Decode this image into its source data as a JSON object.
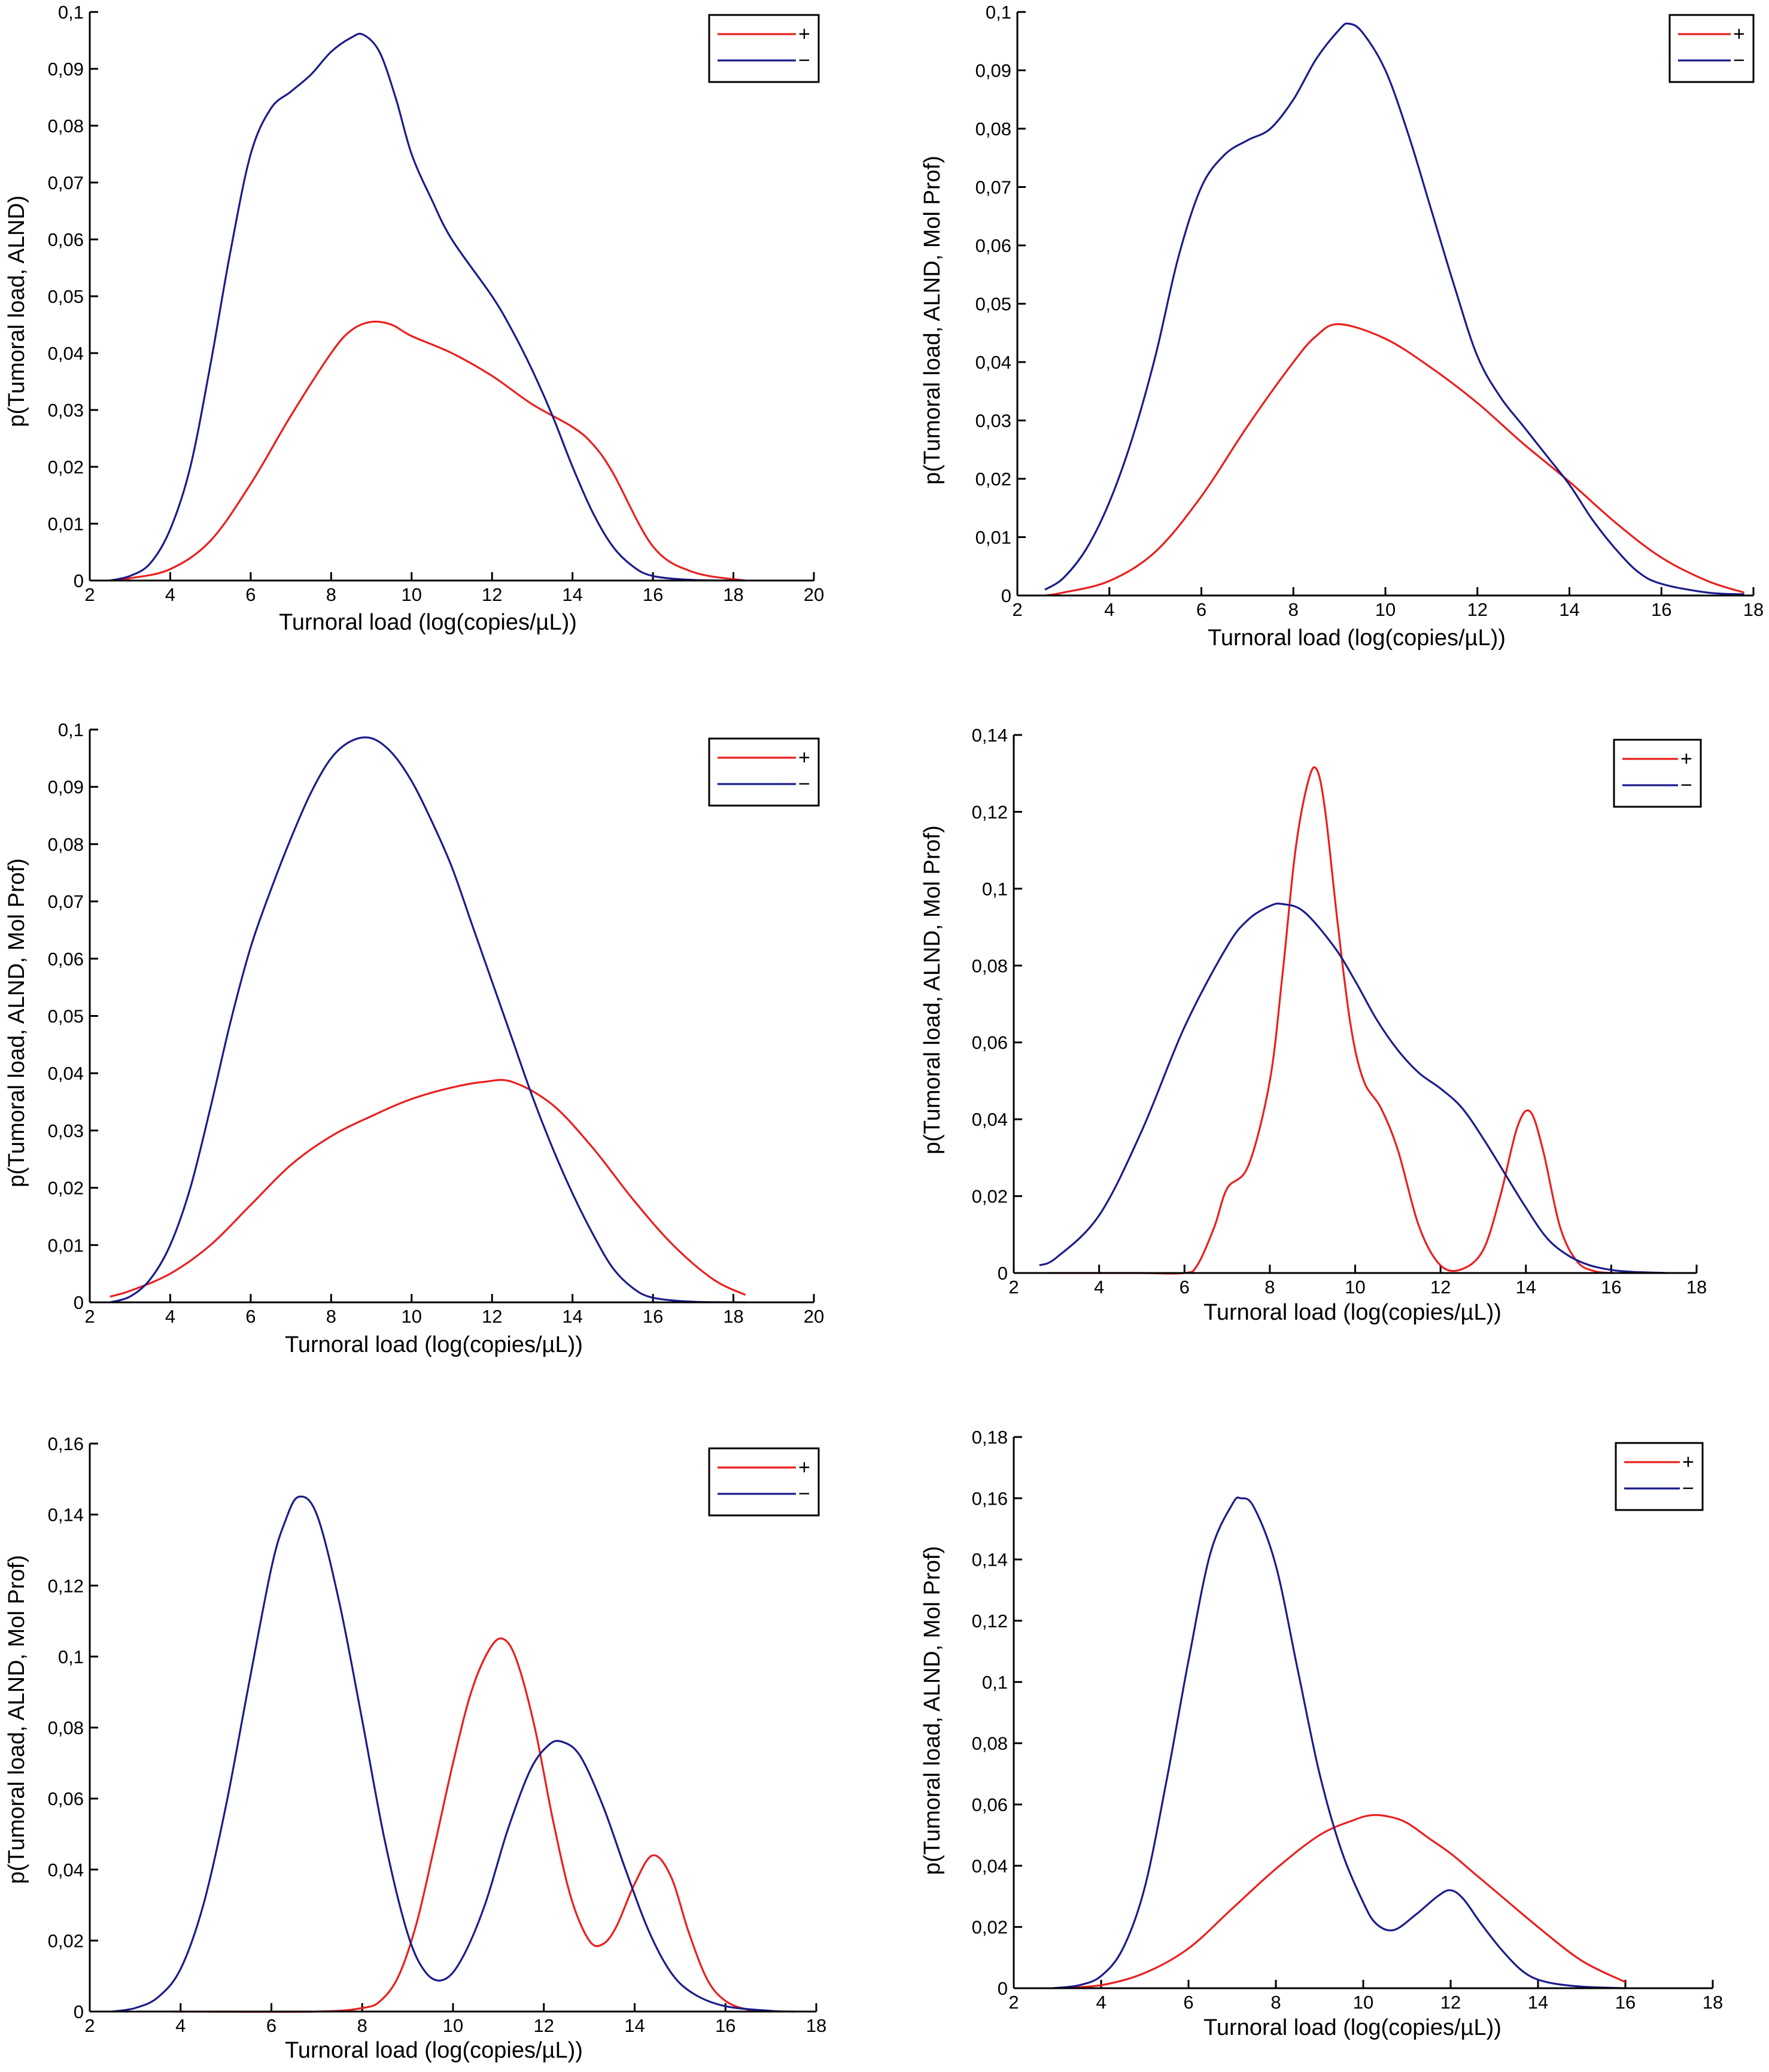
{
  "colors": {
    "pos": "#e8201e",
    "neg": "#1b1c8a",
    "axis": "#000000"
  },
  "chart_data": [
    {
      "type": "line",
      "xlabel": "Turnoral load (log(copies/µL))",
      "ylabel": "p(Tumoral load, ALND)",
      "xlim": [
        2,
        20
      ],
      "ylim": [
        0,
        0.1
      ],
      "xticks": [
        2,
        4,
        6,
        8,
        10,
        12,
        14,
        16,
        18,
        20
      ],
      "xtick_labels": [
        "2",
        "4",
        "6",
        "8",
        "10",
        "12",
        "14",
        "16",
        "18",
        "20"
      ],
      "yticks": [
        0,
        0.01,
        0.02,
        0.03,
        0.04,
        0.05,
        0.06,
        0.07,
        0.08,
        0.09,
        0.1
      ],
      "ytick_labels": [
        "0",
        "0,01",
        "0,02",
        "0,03",
        "0,04",
        "0,05",
        "0,06",
        "0,07",
        "0,08",
        "0,09",
        "0,1"
      ],
      "legend": "top-right",
      "series": [
        {
          "name": "+",
          "color": "#e8201e",
          "x": [
            2.5,
            3,
            4,
            5,
            6,
            7,
            8,
            8.5,
            9,
            9.5,
            10,
            11,
            12,
            13,
            14,
            14.5,
            15,
            16,
            17,
            18.3
          ],
          "y": [
            0,
            0.0004,
            0.002,
            0.007,
            0.017,
            0.029,
            0.04,
            0.044,
            0.0455,
            0.045,
            0.043,
            0.04,
            0.036,
            0.031,
            0.027,
            0.024,
            0.019,
            0.006,
            0.0015,
            0
          ]
        },
        {
          "name": "−",
          "color": "#1b1c8a",
          "x": [
            2.5,
            3,
            3.5,
            4,
            4.5,
            5,
            5.5,
            6,
            6.5,
            7,
            7.5,
            8,
            8.5,
            8.8,
            9.2,
            9.6,
            10,
            10.5,
            11,
            12,
            12.5,
            13,
            13.5,
            14,
            14.5,
            15,
            15.5,
            16,
            17,
            18.3
          ],
          "y": [
            0,
            0.0008,
            0.003,
            0.009,
            0.02,
            0.038,
            0.058,
            0.075,
            0.083,
            0.086,
            0.089,
            0.093,
            0.0955,
            0.096,
            0.093,
            0.085,
            0.075,
            0.067,
            0.06,
            0.05,
            0.044,
            0.037,
            0.029,
            0.02,
            0.012,
            0.006,
            0.0025,
            0.0008,
            0.0001,
            0
          ]
        }
      ]
    },
    {
      "type": "line",
      "xlabel": "Turnoral load (log(copies/µL))",
      "ylabel": "p(Tumoral load, ALND, Mol Prof)",
      "xlim": [
        2,
        18
      ],
      "ylim": [
        0,
        0.1
      ],
      "xticks": [
        2,
        4,
        6,
        8,
        10,
        12,
        14,
        16,
        18
      ],
      "xtick_labels": [
        "2",
        "4",
        "6",
        "8",
        "10",
        "12",
        "14",
        "16",
        "18"
      ],
      "yticks": [
        0,
        0.01,
        0.02,
        0.03,
        0.04,
        0.05,
        0.06,
        0.07,
        0.08,
        0.09,
        0.1
      ],
      "ytick_labels": [
        "0",
        "0,01",
        "0,02",
        "0,03",
        "0,04",
        "0,05",
        "0,06",
        "0,07",
        "0,08",
        "0,09",
        "0,1"
      ],
      "legend": "top-right",
      "series": [
        {
          "name": "+",
          "color": "#e8201e",
          "x": [
            2.6,
            3,
            4,
            5,
            6,
            7,
            8,
            8.5,
            9,
            10,
            11,
            12,
            13,
            14,
            15,
            16,
            17,
            17.8
          ],
          "y": [
            0,
            0.0005,
            0.0025,
            0.0075,
            0.017,
            0.029,
            0.04,
            0.0445,
            0.0465,
            0.044,
            0.039,
            0.033,
            0.026,
            0.0195,
            0.0125,
            0.0065,
            0.0025,
            0.0005
          ]
        },
        {
          "name": "−",
          "color": "#1b1c8a",
          "x": [
            2.6,
            3,
            3.5,
            4,
            4.5,
            5,
            5.5,
            6,
            6.5,
            7,
            7.5,
            8,
            8.5,
            9,
            9.2,
            9.5,
            10,
            10.5,
            11,
            11.5,
            12,
            12.5,
            13,
            13.5,
            14,
            14.5,
            15,
            15.5,
            16,
            17,
            17.8
          ],
          "y": [
            0.001,
            0.003,
            0.008,
            0.016,
            0.027,
            0.041,
            0.058,
            0.07,
            0.0755,
            0.078,
            0.08,
            0.085,
            0.092,
            0.097,
            0.098,
            0.0965,
            0.09,
            0.079,
            0.066,
            0.053,
            0.041,
            0.034,
            0.029,
            0.024,
            0.019,
            0.013,
            0.008,
            0.004,
            0.002,
            0.0005,
            0.0002
          ]
        }
      ]
    },
    {
      "type": "line",
      "xlabel": "Turnoral load (log(copies/µL))",
      "ylabel": "p(Tumoral load, ALND, Mol Prof)",
      "xlim": [
        2,
        20
      ],
      "ylim": [
        0,
        0.1
      ],
      "xticks": [
        2,
        4,
        6,
        8,
        10,
        12,
        14,
        16,
        18,
        20
      ],
      "xtick_labels": [
        "2",
        "4",
        "6",
        "8",
        "10",
        "12",
        "14",
        "16",
        "18",
        "20"
      ],
      "yticks": [
        0,
        0.01,
        0.02,
        0.03,
        0.04,
        0.05,
        0.06,
        0.07,
        0.08,
        0.09,
        0.1
      ],
      "ytick_labels": [
        "0",
        "0,01",
        "0,02",
        "0,03",
        "0,04",
        "0,05",
        "0,06",
        "0,07",
        "0,08",
        "0,09",
        "0,1"
      ],
      "legend": "top-right",
      "series": [
        {
          "name": "+",
          "color": "#e8201e",
          "x": [
            2.5,
            3,
            4,
            5,
            6,
            7,
            8,
            9,
            10,
            11,
            11.8,
            12.5,
            13.5,
            14.5,
            15.5,
            16.5,
            17.5,
            18.3
          ],
          "y": [
            0.001,
            0.002,
            0.005,
            0.01,
            0.017,
            0.024,
            0.029,
            0.0325,
            0.0355,
            0.0375,
            0.0385,
            0.0385,
            0.0345,
            0.027,
            0.018,
            0.01,
            0.004,
            0.0013
          ]
        },
        {
          "name": "−",
          "color": "#1b1c8a",
          "x": [
            2.5,
            3,
            3.5,
            4,
            4.5,
            5,
            5.5,
            6,
            6.5,
            7,
            7.5,
            8,
            8.5,
            9,
            9.5,
            10,
            10.5,
            11,
            11.5,
            12,
            12.5,
            13,
            13.5,
            14,
            14.5,
            15,
            15.5,
            16,
            17,
            18.3
          ],
          "y": [
            0,
            0.001,
            0.004,
            0.01,
            0.02,
            0.034,
            0.049,
            0.062,
            0.072,
            0.081,
            0.089,
            0.095,
            0.098,
            0.0985,
            0.096,
            0.091,
            0.084,
            0.076,
            0.066,
            0.056,
            0.046,
            0.036,
            0.027,
            0.019,
            0.012,
            0.006,
            0.0025,
            0.0008,
            0.0001,
            0
          ]
        }
      ]
    },
    {
      "type": "line",
      "xlabel": "Turnoral load (log(copies/µL))",
      "ylabel": "p(Tumoral load, ALND, Mol Prof)",
      "xlim": [
        2,
        18
      ],
      "ylim": [
        0,
        0.14
      ],
      "xticks": [
        2,
        4,
        6,
        8,
        10,
        12,
        14,
        16,
        18
      ],
      "xtick_labels": [
        "2",
        "4",
        "6",
        "8",
        "10",
        "12",
        "14",
        "16",
        "18"
      ],
      "yticks": [
        0,
        0.02,
        0.04,
        0.06,
        0.08,
        0.1,
        0.12,
        0.14
      ],
      "ytick_labels": [
        "0",
        "0,02",
        "0,04",
        "0,06",
        "0,08",
        "0,1",
        "0,12",
        "0,14"
      ],
      "legend": "top-right",
      "series": [
        {
          "name": "+",
          "color": "#e8201e",
          "x": [
            2.8,
            4,
            5,
            6,
            6.3,
            6.7,
            7,
            7.5,
            8,
            8.3,
            8.6,
            8.9,
            9.1,
            9.3,
            9.6,
            9.9,
            10.2,
            10.6,
            11,
            11.5,
            12,
            12.5,
            13,
            13.4,
            13.8,
            14.1,
            14.4,
            14.8,
            15.2,
            15.6,
            16
          ],
          "y": [
            0,
            0,
            0,
            0,
            0.002,
            0.012,
            0.022,
            0.028,
            0.05,
            0.078,
            0.11,
            0.128,
            0.131,
            0.12,
            0.09,
            0.064,
            0.05,
            0.043,
            0.032,
            0.012,
            0.002,
            0.001,
            0.006,
            0.02,
            0.038,
            0.042,
            0.032,
            0.012,
            0.003,
            0.0005,
            0
          ]
        },
        {
          "name": "−",
          "color": "#1b1c8a",
          "x": [
            2.6,
            3,
            4,
            5,
            6,
            7,
            7.5,
            8,
            8.3,
            8.8,
            9.5,
            10,
            10.5,
            11,
            11.5,
            12,
            12.5,
            13,
            13.5,
            14,
            14.5,
            15,
            15.5,
            16,
            16.5,
            17,
            17.3
          ],
          "y": [
            0.002,
            0.004,
            0.015,
            0.037,
            0.064,
            0.085,
            0.092,
            0.0955,
            0.096,
            0.094,
            0.085,
            0.076,
            0.066,
            0.058,
            0.052,
            0.048,
            0.043,
            0.035,
            0.026,
            0.017,
            0.009,
            0.0045,
            0.002,
            0.0008,
            0.0003,
            0.0001,
            0
          ]
        }
      ]
    },
    {
      "type": "line",
      "xlabel": "Turnoral load (log(copies/µL))",
      "ylabel": "p(Tumoral load, ALND, Mol Prof)",
      "xlim": [
        2,
        18
      ],
      "ylim": [
        0,
        0.16
      ],
      "xticks": [
        2,
        4,
        6,
        8,
        10,
        12,
        14,
        16,
        18
      ],
      "xtick_labels": [
        "2",
        "4",
        "6",
        "8",
        "10",
        "12",
        "14",
        "16",
        "18"
      ],
      "yticks": [
        0,
        0.02,
        0.04,
        0.06,
        0.08,
        0.1,
        0.12,
        0.14,
        0.16
      ],
      "ytick_labels": [
        "0",
        "0,02",
        "0,04",
        "0,06",
        "0,08",
        "0,1",
        "0,12",
        "0,14",
        "0,16"
      ],
      "legend": "top-right",
      "series": [
        {
          "name": "+",
          "color": "#e8201e",
          "x": [
            3.8,
            7,
            8,
            8.4,
            8.8,
            9.2,
            9.6,
            10,
            10.4,
            10.8,
            11.1,
            11.4,
            11.8,
            12.2,
            12.6,
            13,
            13.3,
            13.6,
            14,
            14.4,
            14.8,
            15.2,
            15.6,
            16,
            16.5,
            17
          ],
          "y": [
            0,
            0,
            0.001,
            0.003,
            0.01,
            0.025,
            0.047,
            0.07,
            0.09,
            0.102,
            0.105,
            0.099,
            0.08,
            0.054,
            0.032,
            0.02,
            0.019,
            0.024,
            0.036,
            0.044,
            0.038,
            0.022,
            0.009,
            0.003,
            0.0005,
            0
          ]
        },
        {
          "name": "−",
          "color": "#1b1c8a",
          "x": [
            2.5,
            3,
            3.5,
            4,
            4.5,
            5,
            5.5,
            6,
            6.3,
            6.6,
            7,
            7.5,
            8,
            8.5,
            9,
            9.4,
            9.8,
            10.2,
            10.7,
            11.2,
            11.7,
            12.1,
            12.4,
            12.8,
            13.3,
            13.8,
            14.3,
            14.8,
            15.3,
            16,
            17,
            17.5
          ],
          "y": [
            0,
            0.001,
            0.004,
            0.012,
            0.03,
            0.058,
            0.092,
            0.125,
            0.138,
            0.145,
            0.14,
            0.115,
            0.082,
            0.048,
            0.022,
            0.011,
            0.009,
            0.015,
            0.03,
            0.051,
            0.068,
            0.075,
            0.076,
            0.072,
            0.058,
            0.04,
            0.023,
            0.011,
            0.005,
            0.0015,
            0.0002,
            0
          ]
        }
      ]
    },
    {
      "type": "line",
      "xlabel": "Turnoral load (log(copies/µL))",
      "ylabel": "p(Tumoral load, ALND, Mol Prof)",
      "xlim": [
        2,
        18
      ],
      "ylim": [
        0,
        0.18
      ],
      "xticks": [
        2,
        4,
        6,
        8,
        10,
        12,
        14,
        16,
        18
      ],
      "xtick_labels": [
        "2",
        "4",
        "6",
        "8",
        "10",
        "12",
        "14",
        "16",
        "18"
      ],
      "yticks": [
        0,
        0.02,
        0.04,
        0.06,
        0.08,
        0.1,
        0.12,
        0.14,
        0.16,
        0.18
      ],
      "ytick_labels": [
        "0",
        "0,02",
        "0,04",
        "0,06",
        "0,08",
        "0,1",
        "0,12",
        "0,14",
        "0,16",
        "0,18"
      ],
      "legend": "top-right",
      "series": [
        {
          "name": "+",
          "color": "#e8201e",
          "x": [
            2.9,
            4,
            5,
            6,
            7,
            8,
            9,
            9.8,
            10.2,
            10.6,
            11,
            11.5,
            12,
            12.5,
            13,
            14,
            15,
            16
          ],
          "y": [
            0,
            0.001,
            0.005,
            0.013,
            0.026,
            0.039,
            0.05,
            0.055,
            0.0565,
            0.056,
            0.054,
            0.049,
            0.044,
            0.038,
            0.032,
            0.02,
            0.009,
            0.002
          ]
        },
        {
          "name": "−",
          "color": "#1b1c8a",
          "x": [
            2.9,
            3.5,
            4,
            4.5,
            5,
            5.5,
            6,
            6.5,
            7,
            7.2,
            7.5,
            8,
            8.5,
            9,
            9.5,
            10,
            10.3,
            10.7,
            11.2,
            11.7,
            12,
            12.3,
            12.7,
            13.2,
            13.7,
            14.2,
            15,
            16
          ],
          "y": [
            0,
            0.001,
            0.004,
            0.013,
            0.033,
            0.068,
            0.107,
            0.142,
            0.158,
            0.16,
            0.157,
            0.138,
            0.104,
            0.07,
            0.045,
            0.028,
            0.021,
            0.019,
            0.024,
            0.03,
            0.032,
            0.029,
            0.021,
            0.012,
            0.005,
            0.002,
            0.0005,
            0
          ]
        }
      ]
    }
  ]
}
